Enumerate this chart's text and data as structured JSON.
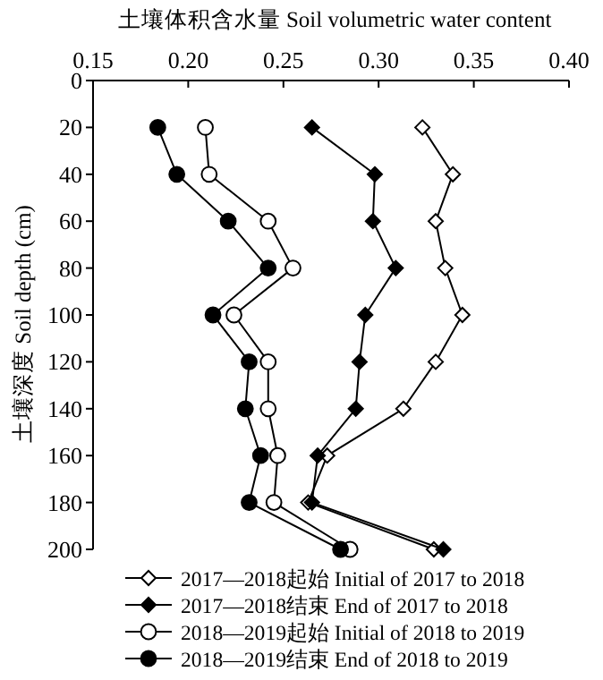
{
  "chart_data": {
    "type": "line",
    "xlabel": "土壤体积含水量 Soil volumetric water content",
    "ylabel": "土壤深度 Soil depth (cm)",
    "xlim": [
      0.15,
      0.4
    ],
    "xticks": [
      {
        "value": 0.15,
        "label": "0.15"
      },
      {
        "value": 0.2,
        "label": "0.20"
      },
      {
        "value": 0.25,
        "label": "0.25"
      },
      {
        "value": 0.3,
        "label": "0.30"
      },
      {
        "value": 0.35,
        "label": "0.35"
      },
      {
        "value": 0.4,
        "label": "0.40"
      }
    ],
    "ylim": [
      200,
      0
    ],
    "yticks": [
      0,
      20,
      40,
      60,
      80,
      100,
      120,
      140,
      160,
      180,
      200
    ],
    "legend": "bottom",
    "grid": false,
    "line_style": "solid",
    "series": [
      {
        "name": "2017—2018起始 Initial of 2017 to 2018",
        "color": "#000000",
        "marker": "diamond",
        "x": [
          0.323,
          0.339,
          0.33,
          0.335,
          0.344,
          0.33,
          0.313,
          0.273,
          0.263,
          0.329
        ],
        "values": [
          20,
          40,
          60,
          80,
          100,
          120,
          140,
          160,
          180,
          200
        ]
      },
      {
        "name": "2017—2018结束 End of 2017 to 2018",
        "color": "#000000",
        "marker": "diamond",
        "x": [
          0.265,
          0.298,
          0.297,
          0.309,
          0.293,
          0.29,
          0.288,
          0.268,
          0.265,
          0.334
        ],
        "values": [
          20,
          40,
          60,
          80,
          100,
          120,
          140,
          160,
          180,
          200
        ]
      },
      {
        "name": "2018—2019起始 Initial of 2018 to 2019",
        "color": "#000000",
        "marker": "circle",
        "x": [
          0.209,
          0.211,
          0.242,
          0.255,
          0.224,
          0.242,
          0.242,
          0.247,
          0.245,
          0.285
        ],
        "values": [
          20,
          40,
          60,
          80,
          100,
          120,
          140,
          160,
          180,
          200
        ]
      },
      {
        "name": "2018—2019结束 End of 2018 to 2019",
        "color": "#000000",
        "marker": "circle",
        "x": [
          0.184,
          0.194,
          0.221,
          0.242,
          0.213,
          0.232,
          0.23,
          0.238,
          0.232,
          0.28
        ],
        "values": [
          20,
          40,
          60,
          80,
          100,
          120,
          140,
          160,
          180,
          200
        ]
      }
    ]
  }
}
